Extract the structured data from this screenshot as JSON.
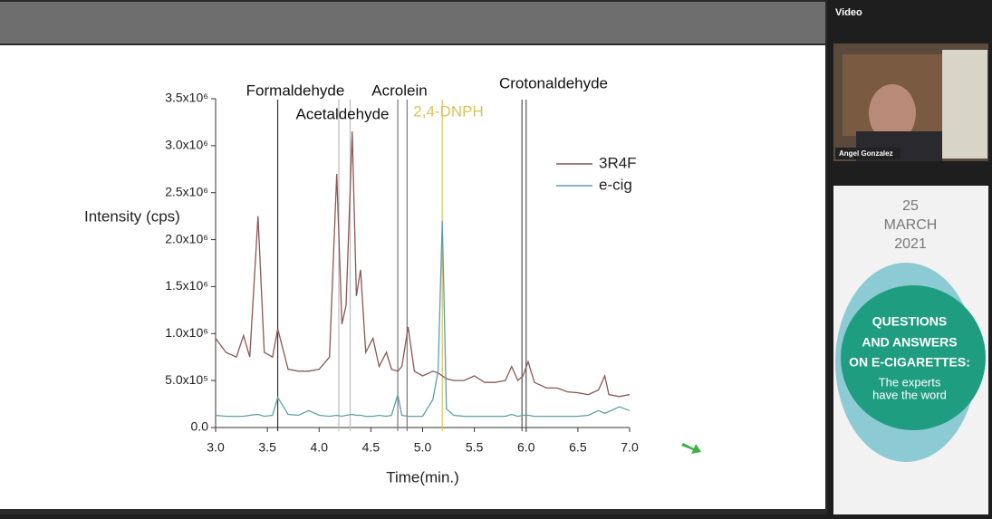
{
  "video_panel": {
    "title": "Video",
    "speaker": "Angel Gonzalez"
  },
  "banner": {
    "day": "25",
    "month": "MARCH",
    "year": "2021",
    "headline": [
      "QUESTIONS",
      "AND ANSWERS",
      "ON E-CIGARETTES:"
    ],
    "tagline": [
      "The experts",
      "have the word"
    ]
  },
  "chart_data": {
    "type": "line",
    "xlabel": "Time(min.)",
    "ylabel": "Intensity (cps)",
    "x": [
      3.0,
      3.1,
      3.2,
      3.27,
      3.33,
      3.41,
      3.47,
      3.55,
      3.6,
      3.7,
      3.8,
      3.9,
      4.0,
      4.1,
      4.17,
      4.22,
      4.26,
      4.32,
      4.36,
      4.4,
      4.45,
      4.52,
      4.58,
      4.65,
      4.7,
      4.76,
      4.8,
      4.86,
      4.92,
      5.0,
      5.1,
      5.15,
      5.19,
      5.23,
      5.3,
      5.4,
      5.5,
      5.6,
      5.7,
      5.8,
      5.86,
      5.92,
      5.97,
      6.02,
      6.08,
      6.2,
      6.3,
      6.4,
      6.5,
      6.6,
      6.7,
      6.76,
      6.8,
      6.9,
      7.0
    ],
    "series": [
      {
        "name": "3R4F",
        "color": "#8a5656",
        "values": [
          950000,
          800000,
          750000,
          980000,
          750000,
          2250000,
          800000,
          750000,
          1050000,
          620000,
          600000,
          600000,
          620000,
          750000,
          2700000,
          1100000,
          1300000,
          3150000,
          1400000,
          1680000,
          800000,
          950000,
          650000,
          800000,
          620000,
          600000,
          650000,
          1070000,
          600000,
          550000,
          600000,
          580000,
          550000,
          520000,
          500000,
          500000,
          550000,
          480000,
          480000,
          500000,
          650000,
          500000,
          550000,
          700000,
          480000,
          420000,
          420000,
          380000,
          370000,
          350000,
          400000,
          550000,
          350000,
          330000,
          350000
        ]
      },
      {
        "name": "e-cig",
        "color": "#5e9ea8",
        "values": [
          130000,
          120000,
          120000,
          120000,
          130000,
          140000,
          120000,
          130000,
          320000,
          140000,
          130000,
          180000,
          130000,
          120000,
          130000,
          120000,
          130000,
          140000,
          130000,
          130000,
          120000,
          120000,
          130000,
          120000,
          130000,
          350000,
          130000,
          120000,
          120000,
          120000,
          300000,
          600000,
          2200000,
          200000,
          130000,
          120000,
          120000,
          120000,
          120000,
          120000,
          140000,
          120000,
          130000,
          130000,
          120000,
          120000,
          120000,
          120000,
          120000,
          130000,
          180000,
          150000,
          170000,
          220000,
          180000
        ]
      }
    ],
    "xlim": [
      3.0,
      7.0
    ],
    "xticks": [
      {
        "value": 3.0,
        "label": "3.0"
      },
      3.5,
      {
        "value": 4.0,
        "label": "4.0"
      },
      4.5,
      {
        "value": 5.0,
        "label": "5.0"
      },
      5.5,
      {
        "value": 6.0,
        "label": "6.0"
      },
      6.5,
      {
        "value": 7.0,
        "label": "7.0"
      }
    ],
    "ylim": [
      0,
      3500000
    ],
    "yticks": [
      {
        "value": 0,
        "label": "0.0"
      },
      {
        "value": 500000,
        "label": "5.0x10⁵"
      },
      {
        "value": 1000000,
        "label": "1.0x10⁶"
      },
      {
        "value": 1500000,
        "label": "1.5x10⁶"
      },
      {
        "value": 2000000,
        "label": "2.0x10⁶"
      },
      {
        "value": 2500000,
        "label": "2.5x10⁶"
      },
      {
        "value": 3000000,
        "label": "3.0x10⁶"
      },
      {
        "value": 3500000,
        "label": "3.5x10⁶"
      }
    ],
    "annotations": [
      {
        "text": "Formaldehyde",
        "x": [
          3.6
        ],
        "color": "#333333"
      },
      {
        "text": "Acetaldehyde",
        "x": [
          4.19,
          4.3
        ],
        "color": "#bbbbbb"
      },
      {
        "text": "Acrolein",
        "x": [
          4.76,
          4.85
        ],
        "color": "#777777"
      },
      {
        "text": "2,4-DNPH",
        "x": [
          5.19
        ],
        "color": "#d9c25a"
      },
      {
        "text": "Crotonaldehyde",
        "x": [
          5.96,
          6.0
        ],
        "color": "#555555"
      }
    ],
    "legend": "upper right"
  }
}
